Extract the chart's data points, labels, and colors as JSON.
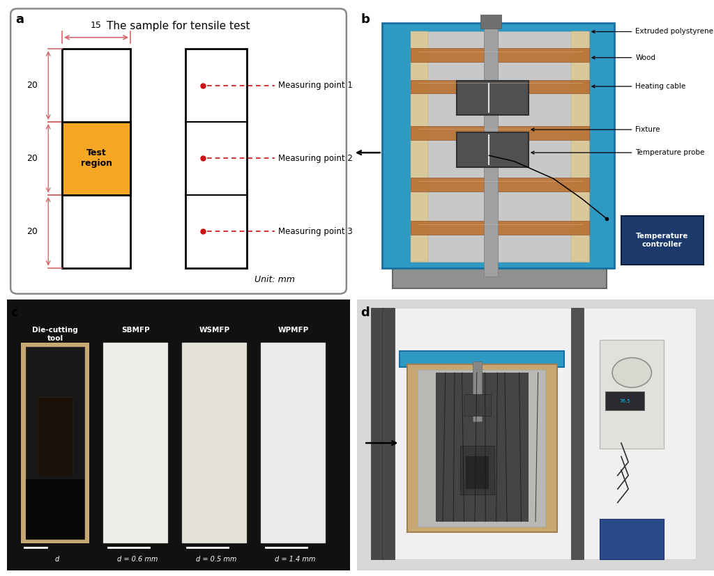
{
  "fig_bg": "#ffffff",
  "panel_a": {
    "title": "The sample for tensile test",
    "test_region_color": "#F5A623",
    "dim_color": "#D4676A",
    "unit": "Unit: mm",
    "measuring_points": [
      "Measuring point 1",
      "Measuring point 2",
      "Measuring point 3"
    ],
    "test_region_label": "Test\nregion"
  },
  "panel_b": {
    "labels": [
      "Extruded polystyrene",
      "Wood",
      "Heating cable",
      "Fixture",
      "Temperature probe"
    ],
    "box_label": "Temperature\ncontroller",
    "blue_color": "#2E9AC4",
    "copper_color": "#B87333",
    "dark_gray": "#555555",
    "controller_bg": "#1B3A6B"
  },
  "panel_c": {
    "bg_color": "#111111",
    "labels_top": [
      "Die-cutting\ntool",
      "SBMFP",
      "WSMFP",
      "WPMFP"
    ],
    "labels_bottom": [
      "d = 0.6 mm",
      "d = 0.5 mm",
      "d = 1.4 mm"
    ],
    "die_bg_color": "#C8A870",
    "strip2_color": "#F0EEE8",
    "strip3_color": "#E5E2D8",
    "strip4_color": "#EAEAEA"
  },
  "panel_d": {
    "bg_color": "#D8D8D8",
    "wall_color": "#F0F0F0",
    "blue_stripe": "#2E9AC4",
    "wood_color": "#C8A870",
    "foil_color": "#B8B8B4",
    "machine_dark": "#484848",
    "equip_blue": "#3A5FAA"
  }
}
